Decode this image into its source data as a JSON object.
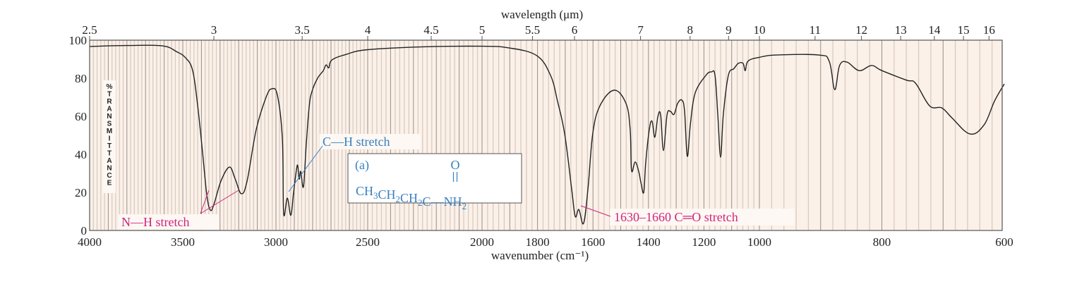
{
  "chart_data": {
    "type": "line",
    "title": "",
    "xlabel": "wavenumber (cm⁻¹)",
    "x2label": "wavelength (μm)",
    "ylabel": "% TRANSMITTANCE",
    "xlim": [
      4000,
      600
    ],
    "ylim": [
      0,
      100
    ],
    "grid": "vertical lines only",
    "x_ticks": [
      4000,
      3500,
      3000,
      2500,
      2000,
      1800,
      1600,
      1400,
      1200,
      1000,
      800,
      600
    ],
    "x2_ticks": [
      "2.5",
      "3",
      "3.5",
      "4",
      "4.5",
      "5",
      "5.5",
      "6",
      "7",
      "8",
      "9",
      "10",
      "11",
      "12",
      "13",
      "14",
      "15",
      "16"
    ],
    "y_ticks": [
      0,
      20,
      40,
      60,
      80,
      100
    ],
    "series": [
      {
        "color": "#222222",
        "points": [
          [
            4000,
            96.7
          ],
          [
            3800,
            97.2
          ],
          [
            3610,
            97
          ],
          [
            3534,
            94
          ],
          [
            3485,
            90.7
          ],
          [
            3447,
            84
          ],
          [
            3420,
            65.5
          ],
          [
            3394,
            41
          ],
          [
            3371,
            18.5
          ],
          [
            3352,
            10.7
          ],
          [
            3333,
            13.7
          ],
          [
            3295,
            26
          ],
          [
            3250,
            33.3
          ],
          [
            3220,
            27.4
          ],
          [
            3186,
            19.3
          ],
          [
            3155,
            26
          ],
          [
            3106,
            53
          ],
          [
            3053,
            70
          ],
          [
            3023,
            74.4
          ],
          [
            2992,
            71
          ],
          [
            2965,
            48
          ],
          [
            2958,
            9
          ],
          [
            2938,
            17
          ],
          [
            2919,
            8
          ],
          [
            2904,
            20
          ],
          [
            2888,
            32
          ],
          [
            2881,
            34
          ],
          [
            2873,
            27
          ],
          [
            2865,
            31
          ],
          [
            2850,
            23
          ],
          [
            2835,
            45
          ],
          [
            2819,
            65
          ],
          [
            2804,
            73
          ],
          [
            2773,
            80
          ],
          [
            2742,
            84
          ],
          [
            2727,
            87
          ],
          [
            2712,
            85.5
          ],
          [
            2696,
            89.5
          ],
          [
            2619,
            92.5
          ],
          [
            2500,
            95
          ],
          [
            2256,
            96.5
          ],
          [
            2000,
            96.8
          ],
          [
            1906,
            96
          ],
          [
            1804,
            92
          ],
          [
            1753,
            81.5
          ],
          [
            1728,
            68
          ],
          [
            1702,
            50.7
          ],
          [
            1677,
            22
          ],
          [
            1664,
            7.4
          ],
          [
            1651,
            11
          ],
          [
            1634,
            3.7
          ],
          [
            1618,
            22
          ],
          [
            1601,
            50.7
          ],
          [
            1575,
            65.5
          ],
          [
            1524,
            73.7
          ],
          [
            1481,
            66.7
          ],
          [
            1466,
            53
          ],
          [
            1461,
            31.5
          ],
          [
            1448,
            36
          ],
          [
            1435,
            31
          ],
          [
            1427,
            25
          ],
          [
            1417,
            20
          ],
          [
            1410,
            35.5
          ],
          [
            1397,
            53
          ],
          [
            1387,
            57.4
          ],
          [
            1377,
            49
          ],
          [
            1366,
            60
          ],
          [
            1356,
            60.7
          ],
          [
            1346,
            42
          ],
          [
            1333,
            60.7
          ],
          [
            1321,
            62.6
          ],
          [
            1308,
            61
          ],
          [
            1295,
            66.7
          ],
          [
            1280,
            68.5
          ],
          [
            1270,
            63
          ],
          [
            1260,
            39
          ],
          [
            1249,
            55.5
          ],
          [
            1232,
            72
          ],
          [
            1193,
            81.5
          ],
          [
            1173,
            83.3
          ],
          [
            1160,
            81.5
          ],
          [
            1150,
            61
          ],
          [
            1140,
            38.5
          ],
          [
            1130,
            61
          ],
          [
            1112,
            81.5
          ],
          [
            1092,
            85
          ],
          [
            1076,
            87.8
          ],
          [
            1059,
            87.8
          ],
          [
            1051,
            84
          ],
          [
            1041,
            89
          ],
          [
            1000,
            91
          ],
          [
            972,
            92.2
          ],
          [
            903,
            92.2
          ],
          [
            886,
            88.9
          ],
          [
            877,
            74
          ],
          [
            869,
            86.7
          ],
          [
            857,
            88.5
          ],
          [
            837,
            84
          ],
          [
            817,
            86.7
          ],
          [
            800,
            84
          ],
          [
            760,
            79
          ],
          [
            745,
            77.4
          ],
          [
            722,
            65.5
          ],
          [
            702,
            64.4
          ],
          [
            685,
            59
          ],
          [
            656,
            50.7
          ],
          [
            633,
            55.5
          ],
          [
            616,
            68
          ],
          [
            600,
            77
          ]
        ]
      }
    ],
    "annotations": [
      {
        "id": "nh",
        "text": "N—H stretch",
        "color": "#d0247c",
        "points_to_wavenumbers": [
          3350,
          3190
        ]
      },
      {
        "id": "ch",
        "text": "C—H stretch",
        "color": "#3a80c0",
        "points_to_wavenumbers": [
          2930
        ]
      },
      {
        "id": "co",
        "text": "1630–1660 C═O stretch",
        "color": "#d0247c",
        "points_to_wavenumbers": [
          1645
        ]
      }
    ],
    "molecule": {
      "label": "(a)",
      "top_atom": "O",
      "chain": [
        [
          "CH",
          "3"
        ],
        [
          "CH",
          "2"
        ],
        [
          "CH",
          "2"
        ],
        [
          "C",
          ""
        ],
        [
          "—NH",
          "2"
        ]
      ],
      "color": "#3a80c0"
    },
    "colors": {
      "background": "#fbf1e8",
      "grid_minor": "#d9cbc2",
      "grid_major": "#9a8f8a"
    }
  }
}
